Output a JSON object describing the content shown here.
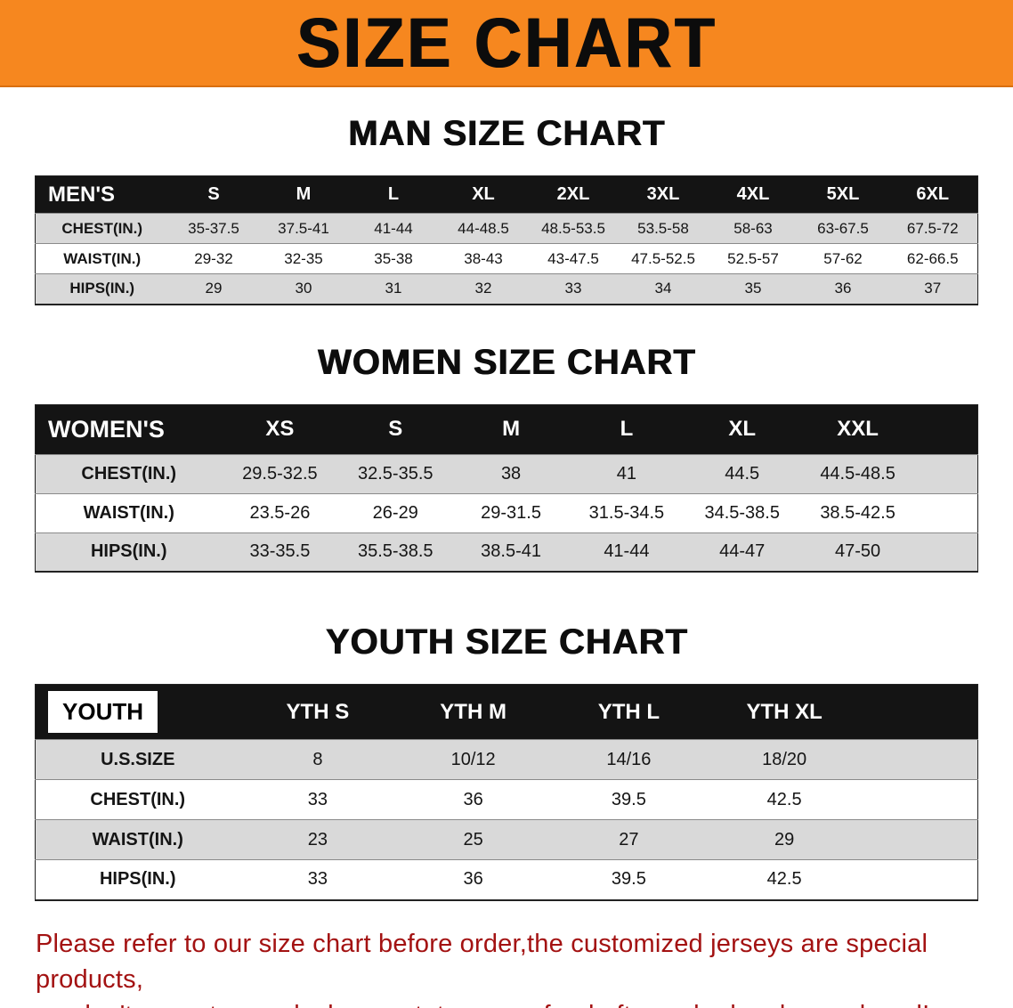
{
  "banner": {
    "title": "SIZE CHART"
  },
  "colors": {
    "banner_orange": "#f6871f",
    "row_gray": "#d9d9d9",
    "header_black": "#141414",
    "note_red": "#a31212"
  },
  "man_section": {
    "heading": "MAN SIZE CHART",
    "table": {
      "header": [
        "MEN'S",
        "S",
        "M",
        "L",
        "XL",
        "2XL",
        "3XL",
        "4XL",
        "5XL",
        "6XL"
      ],
      "rows": [
        [
          "CHEST(IN.)",
          "35-37.5",
          "37.5-41",
          "41-44",
          "44-48.5",
          "48.5-53.5",
          "53.5-58",
          "58-63",
          "63-67.5",
          "67.5-72"
        ],
        [
          "WAIST(IN.)",
          "29-32",
          "32-35",
          "35-38",
          "38-43",
          "43-47.5",
          "47.5-52.5",
          "52.5-57",
          "57-62",
          "62-66.5"
        ],
        [
          "HIPS(IN.)",
          "29",
          "30",
          "31",
          "32",
          "33",
          "34",
          "35",
          "36",
          "37"
        ]
      ]
    }
  },
  "women_section": {
    "heading": "WOMEN SIZE CHART",
    "table": {
      "header": [
        "WOMEN'S",
        "XS",
        "S",
        "M",
        "L",
        "XL",
        "XXL"
      ],
      "rows": [
        [
          "CHEST(IN.)",
          "29.5-32.5",
          "32.5-35.5",
          "38",
          "41",
          "44.5",
          "44.5-48.5"
        ],
        [
          "WAIST(IN.)",
          "23.5-26",
          "26-29",
          "29-31.5",
          "31.5-34.5",
          "34.5-38.5",
          "38.5-42.5"
        ],
        [
          "HIPS(IN.)",
          "33-35.5",
          "35.5-38.5",
          "38.5-41",
          "41-44",
          "44-47",
          "47-50"
        ]
      ]
    }
  },
  "youth_section": {
    "heading": "YOUTH SIZE CHART",
    "table": {
      "header": [
        "YOUTH",
        "YTH S",
        "YTH M",
        "YTH L",
        "YTH XL"
      ],
      "rows": [
        [
          "U.S.SIZE",
          "8",
          "10/12",
          "14/16",
          "18/20"
        ],
        [
          "CHEST(IN.)",
          "33",
          "36",
          "39.5",
          "42.5"
        ],
        [
          "WAIST(IN.)",
          "23",
          "25",
          "27",
          "29"
        ],
        [
          "HIPS(IN.)",
          "33",
          "36",
          "39.5",
          "42.5"
        ]
      ]
    }
  },
  "footer_note": {
    "line1": "Please refer to our size chart before order,the customized jerseys are special products,",
    "line2": "we don't accept cancel, change, teturn or refund after order has been placed!"
  }
}
